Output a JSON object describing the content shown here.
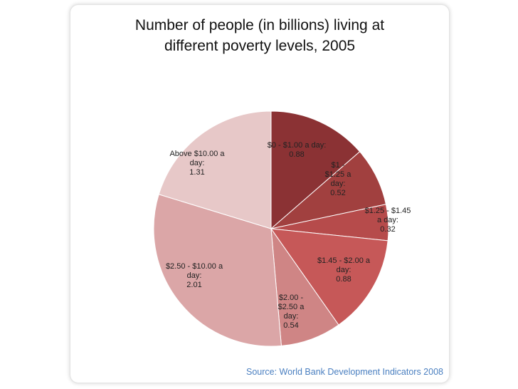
{
  "title_lines": [
    "Number of people (in billions) living at",
    "different poverty levels, 2005"
  ],
  "source": "Source: World Bank Development Indicators 2008",
  "chart_data": {
    "type": "pie",
    "title": "Number of people (in billions) living at different poverty levels, 2005",
    "start_angle_deg": 0,
    "direction": "clockwise",
    "slices": [
      {
        "name": "$0 - $1.00 a day",
        "value": 0.88,
        "color": "#8b3234",
        "label_lines": [
          "$0 - $1.00 a day:",
          "0.88"
        ]
      },
      {
        "name": "$1 - $1.25 a day",
        "value": 0.52,
        "color": "#a1403f",
        "label_lines": [
          "$1 -",
          "$1.25 a",
          "day:",
          "0.52"
        ]
      },
      {
        "name": "$1.25 - $1.45 a day",
        "value": 0.32,
        "color": "#b64b4b",
        "label_lines": [
          "$1.25 - $1.45",
          "a day:",
          "0.32"
        ]
      },
      {
        "name": "$1.45 - $2.00 a day",
        "value": 0.88,
        "color": "#c65858",
        "label_lines": [
          "$1.45 - $2.00 a",
          "day:",
          "0.88"
        ]
      },
      {
        "name": "$2.00 - $2.50 a day",
        "value": 0.54,
        "color": "#cf8585",
        "label_lines": [
          "$2.00 -",
          "$2.50 a",
          "day:",
          "0.54"
        ]
      },
      {
        "name": "$2.50 - $10.00 a day",
        "value": 2.01,
        "color": "#dba6a7",
        "label_lines": [
          "$2.50 - $10.00 a",
          "day:",
          "2.01"
        ]
      },
      {
        "name": "Above $10.00 a day",
        "value": 1.31,
        "color": "#e7c8c8",
        "label_lines": [
          "Above $10.00 a",
          "day:",
          "1.31"
        ]
      }
    ]
  }
}
